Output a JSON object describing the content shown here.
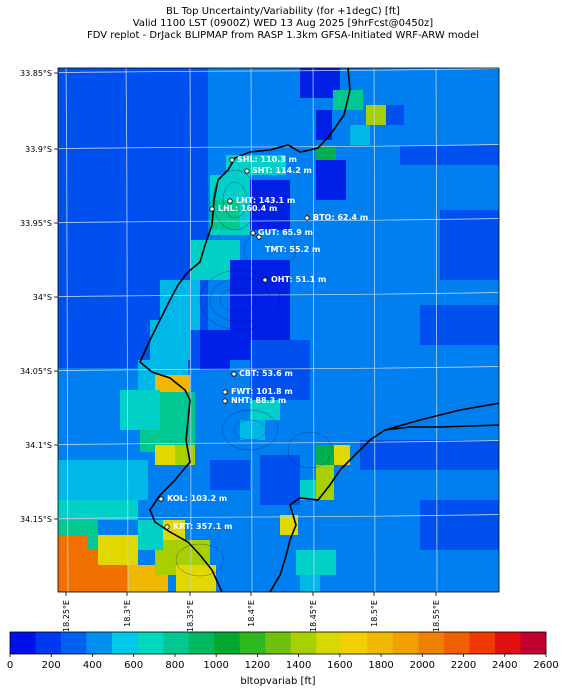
{
  "title": {
    "line1": "BL Top Uncertainty/Variability (for +1degC) [ft]",
    "line2": "Valid 1100 LST (0900Z) WED 13 Aug 2025 [9hrFcst@0450z]",
    "line3": "FDV replot - DrJack BLIPMAP from RASP 1.3km GFSA-Initiated WRF-ARW model"
  },
  "map": {
    "lat_labels": [
      "33.85°S",
      "33.9°S",
      "33.95°S",
      "34°S",
      "34.05°S",
      "34.1°S",
      "34.15°S"
    ],
    "lon_labels": [
      "18.25°E",
      "18.3°E",
      "18.35°E",
      "18.4°E",
      "18.45°E",
      "18.5°E",
      "18.55°E"
    ],
    "stations": [
      {
        "label": "SHL: 110.3 m"
      },
      {
        "label": "SHT: 114.2 m"
      },
      {
        "label": "LHT: 143.1 m"
      },
      {
        "label": "LHL: 160.4 m"
      },
      {
        "label": "BTO: 62.4 m"
      },
      {
        "label": "GUT: 65.9 m"
      },
      {
        "label": "TMT: 55.2 m"
      },
      {
        "label": "OHT: 51.1 m"
      },
      {
        "label": "CBT: 53.6 m"
      },
      {
        "label": "FWT: 101.8 m"
      },
      {
        "label": "NHT: 88.3 m"
      },
      {
        "label": "KOL: 103.2 m"
      },
      {
        "label": "KRT: 357.1 m"
      }
    ]
  },
  "colorbar": {
    "ticks": [
      "0",
      "200",
      "400",
      "600",
      "800",
      "1000",
      "1200",
      "1400",
      "1600",
      "1800",
      "2000",
      "2200",
      "2400",
      "2600"
    ],
    "label": "bltopvariab [ft]",
    "colors": [
      "#0010e8",
      "#0038f0",
      "#0060f0",
      "#0090f0",
      "#00c8e8",
      "#00d8c0",
      "#00c890",
      "#00b860",
      "#00a830",
      "#30b820",
      "#70c010",
      "#a8d000",
      "#d8d800",
      "#f0d000",
      "#f0b800",
      "#f0a000",
      "#f08000",
      "#f06000",
      "#f03800",
      "#e01010",
      "#c00030"
    ],
    "fill_colors": [
      "#0020e8",
      "#0050f0",
      "#0080f0",
      "#00b8e8",
      "#00d0c8",
      "#00c890",
      "#00b050",
      "#a8d000",
      "#e0d800",
      "#f0b800",
      "#f07000",
      "#f04000"
    ]
  }
}
